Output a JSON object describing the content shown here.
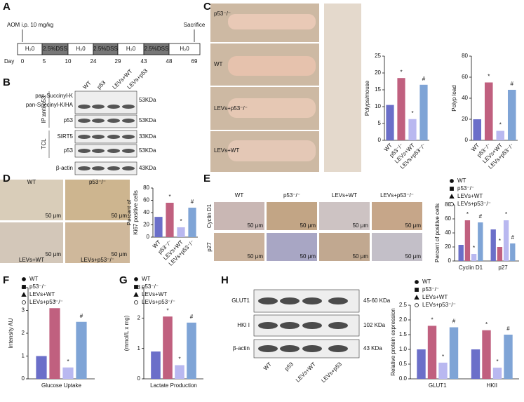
{
  "panels": {
    "A": {
      "letter": "A",
      "aom": "AOM i.p. 10 mg/kg",
      "sacrifice": "Sacrifice",
      "segments": [
        "H₂0",
        "2.5%DSS",
        "H₂0",
        "2.5%DSS",
        "H₂0",
        "2.5%DSS",
        "H₂0"
      ],
      "day_label": "Day",
      "days": [
        0,
        5,
        10,
        24,
        29,
        43,
        48,
        69
      ]
    },
    "B": {
      "letter": "B",
      "ip": "IP:anti-p53",
      "tcl": "TCL",
      "rows": [
        "pan-Succinyl-K",
        "pan-Succinyl-K/HA",
        "p53",
        "SIRT5",
        "p53",
        "β-actin"
      ],
      "columns": [
        "WT",
        "p53",
        "LEVs+WT",
        "LEVs+p53"
      ],
      "sizes": [
        "53KDa",
        "53KDa",
        "33KDa",
        "53KDa",
        "43KDa"
      ]
    },
    "C": {
      "letter": "C",
      "rows": [
        "p53⁻/⁻",
        "WT",
        "LEVs+p53⁻/⁻",
        "LEVs+WT"
      ]
    },
    "D": {
      "letter": "D",
      "images": [
        "WT",
        "p53⁻/⁻",
        "LEVs+WT",
        "LEVs+p53⁻/⁻"
      ],
      "scale": "50 μm"
    },
    "E": {
      "letter": "E",
      "columns": [
        "WT",
        "p53⁻/⁻",
        "LEVs+WT",
        "LEVs+p53⁻/⁻"
      ],
      "rows": [
        "Cyclin D1",
        "p27"
      ],
      "scale": "50 μm"
    },
    "F": {
      "letter": "F"
    },
    "G": {
      "letter": "G"
    },
    "H": {
      "letter": "H",
      "rows": [
        "GLUT1",
        "HKI I",
        "β-actin"
      ],
      "sizes": [
        "45-60 KDa",
        "102 KDa",
        "43 KDa"
      ],
      "columns": [
        "WT",
        "p53",
        "LEVs+WT",
        "LEVs+p53"
      ]
    }
  },
  "chart_data": [
    {
      "type": "bar",
      "ylabel": "Polyps/mouse",
      "categories": [
        "WT",
        "p53⁻/⁻",
        "LEVs+WT",
        "LEVs+p53⁻/⁻"
      ],
      "values": [
        10.5,
        18.5,
        6.3,
        16.5
      ],
      "colors": [
        "#6b6fc9",
        "#c0607f",
        "#b9b8f0",
        "#7fa4d6"
      ],
      "markers": [
        null,
        "*",
        "*",
        "#"
      ],
      "ylim": [
        0,
        25
      ],
      "yticks": [
        0,
        5,
        10,
        15,
        20,
        25
      ]
    },
    {
      "type": "bar",
      "ylabel": "Polyp load",
      "categories": [
        "WT",
        "p53⁻/⁻",
        "LEVs+WT",
        "LEVs+p53⁻/⁻"
      ],
      "values": [
        20,
        55,
        9,
        48
      ],
      "colors": [
        "#6b6fc9",
        "#c0607f",
        "#b9b8f0",
        "#7fa4d6"
      ],
      "markers": [
        null,
        "*",
        "*",
        "#"
      ],
      "ylim": [
        0,
        80
      ],
      "yticks": [
        0,
        20,
        40,
        60,
        80
      ]
    },
    {
      "type": "bar",
      "ylabel": [
        "Percent of",
        "Ki67 positive cells"
      ],
      "categories": [
        "WT",
        "p53⁻/⁻",
        "LEVs+WT",
        "LEVs+p53⁻/⁻"
      ],
      "values": [
        33,
        56,
        16,
        48
      ],
      "colors": [
        "#6b6fc9",
        "#c0607f",
        "#b9b8f0",
        "#7fa4d6"
      ],
      "markers": [
        null,
        "*",
        "*",
        "#"
      ],
      "ylim": [
        0,
        80
      ],
      "yticks": [
        0,
        20,
        40,
        60,
        80
      ]
    },
    {
      "type": "grouped_bar",
      "ylabel": "Percent of positive cells",
      "categories": [
        "Cyclin D1",
        "p27"
      ],
      "series": [
        {
          "name": "WT",
          "color": "#6b6fc9",
          "symbol": "dot",
          "values": [
            23,
            45
          ],
          "markers": [
            null,
            null
          ]
        },
        {
          "name": "p53⁻/⁻",
          "color": "#c0607f",
          "symbol": "square",
          "values": [
            58,
            20
          ],
          "markers": [
            "*",
            "*"
          ]
        },
        {
          "name": "LEVs+WT",
          "color": "#b9b8f0",
          "symbol": "triangle",
          "values": [
            10,
            58
          ],
          "markers": [
            "*",
            "*"
          ]
        },
        {
          "name": "LEVs+p53⁻/⁻",
          "color": "#7fa4d6",
          "symbol": "circle",
          "values": [
            55,
            25
          ],
          "markers": [
            "#",
            "#"
          ]
        }
      ],
      "ylim": [
        0,
        80
      ],
      "yticks": [
        0,
        20,
        40,
        60,
        80
      ]
    },
    {
      "type": "grouped_bar",
      "ylabel": "Intensity AU",
      "categories": [
        "Glucose Uptake"
      ],
      "series": [
        {
          "name": "WT",
          "color": "#6b6fc9",
          "symbol": "dot",
          "values": [
            1.0
          ],
          "markers": [
            null
          ]
        },
        {
          "name": "p53⁻/⁻",
          "color": "#c0607f",
          "symbol": "square",
          "values": [
            3.1
          ],
          "markers": [
            "*"
          ]
        },
        {
          "name": "LEVs+WT",
          "color": "#b9b8f0",
          "symbol": "triangle",
          "values": [
            0.5
          ],
          "markers": [
            "*"
          ]
        },
        {
          "name": "LEVs+p53⁻/⁻",
          "color": "#7fa4d6",
          "symbol": "circle",
          "values": [
            2.5
          ],
          "markers": [
            "#"
          ]
        }
      ],
      "ylim": [
        0,
        4
      ],
      "yticks": [
        0,
        1,
        2,
        3,
        4
      ]
    },
    {
      "type": "grouped_bar",
      "ylabel": "(mmol/L x mg)",
      "categories": [
        "Lactate Production"
      ],
      "series": [
        {
          "name": "WT",
          "color": "#6b6fc9",
          "symbol": "dot",
          "values": [
            0.9
          ],
          "markers": [
            null
          ]
        },
        {
          "name": "p53⁻/⁻",
          "color": "#c0607f",
          "symbol": "square",
          "values": [
            2.05
          ],
          "markers": [
            "*"
          ]
        },
        {
          "name": "LEVs+WT",
          "color": "#b9b8f0",
          "symbol": "triangle",
          "values": [
            0.45
          ],
          "markers": [
            "*"
          ]
        },
        {
          "name": "LEVs+p53⁻/⁻",
          "color": "#7fa4d6",
          "symbol": "circle",
          "values": [
            1.85
          ],
          "markers": [
            "#"
          ]
        }
      ],
      "ylim": [
        0,
        3
      ],
      "yticks": [
        0,
        1,
        2,
        3
      ]
    },
    {
      "type": "grouped_bar",
      "ylabel": "Relative protein expression",
      "categories": [
        "GLUT1",
        "HKII"
      ],
      "series": [
        {
          "name": "WT",
          "color": "#6b6fc9",
          "symbol": "dot",
          "values": [
            1.0,
            1.0
          ],
          "markers": [
            null,
            null
          ]
        },
        {
          "name": "p53⁻/⁻",
          "color": "#c0607f",
          "symbol": "square",
          "values": [
            1.8,
            1.65
          ],
          "markers": [
            "*",
            "*"
          ]
        },
        {
          "name": "LEVs+WT",
          "color": "#b9b8f0",
          "symbol": "triangle",
          "values": [
            0.55,
            0.38
          ],
          "markers": [
            "*",
            "*"
          ]
        },
        {
          "name": "LEVs+p53⁻/⁻",
          "color": "#7fa4d6",
          "symbol": "circle",
          "values": [
            1.75,
            1.5
          ],
          "markers": [
            "#",
            "#"
          ]
        }
      ],
      "ylim": [
        0,
        2.5
      ],
      "yticks": [
        {
          "value": 0,
          "label": "0.0"
        },
        {
          "value": 0.5,
          "label": "0.5"
        },
        {
          "value": 1,
          "label": "1.0"
        },
        {
          "value": 1.5,
          "label": "1.5"
        },
        {
          "value": 2,
          "label": "2.0"
        },
        {
          "value": 2.5,
          "label": "2.5"
        }
      ]
    }
  ]
}
